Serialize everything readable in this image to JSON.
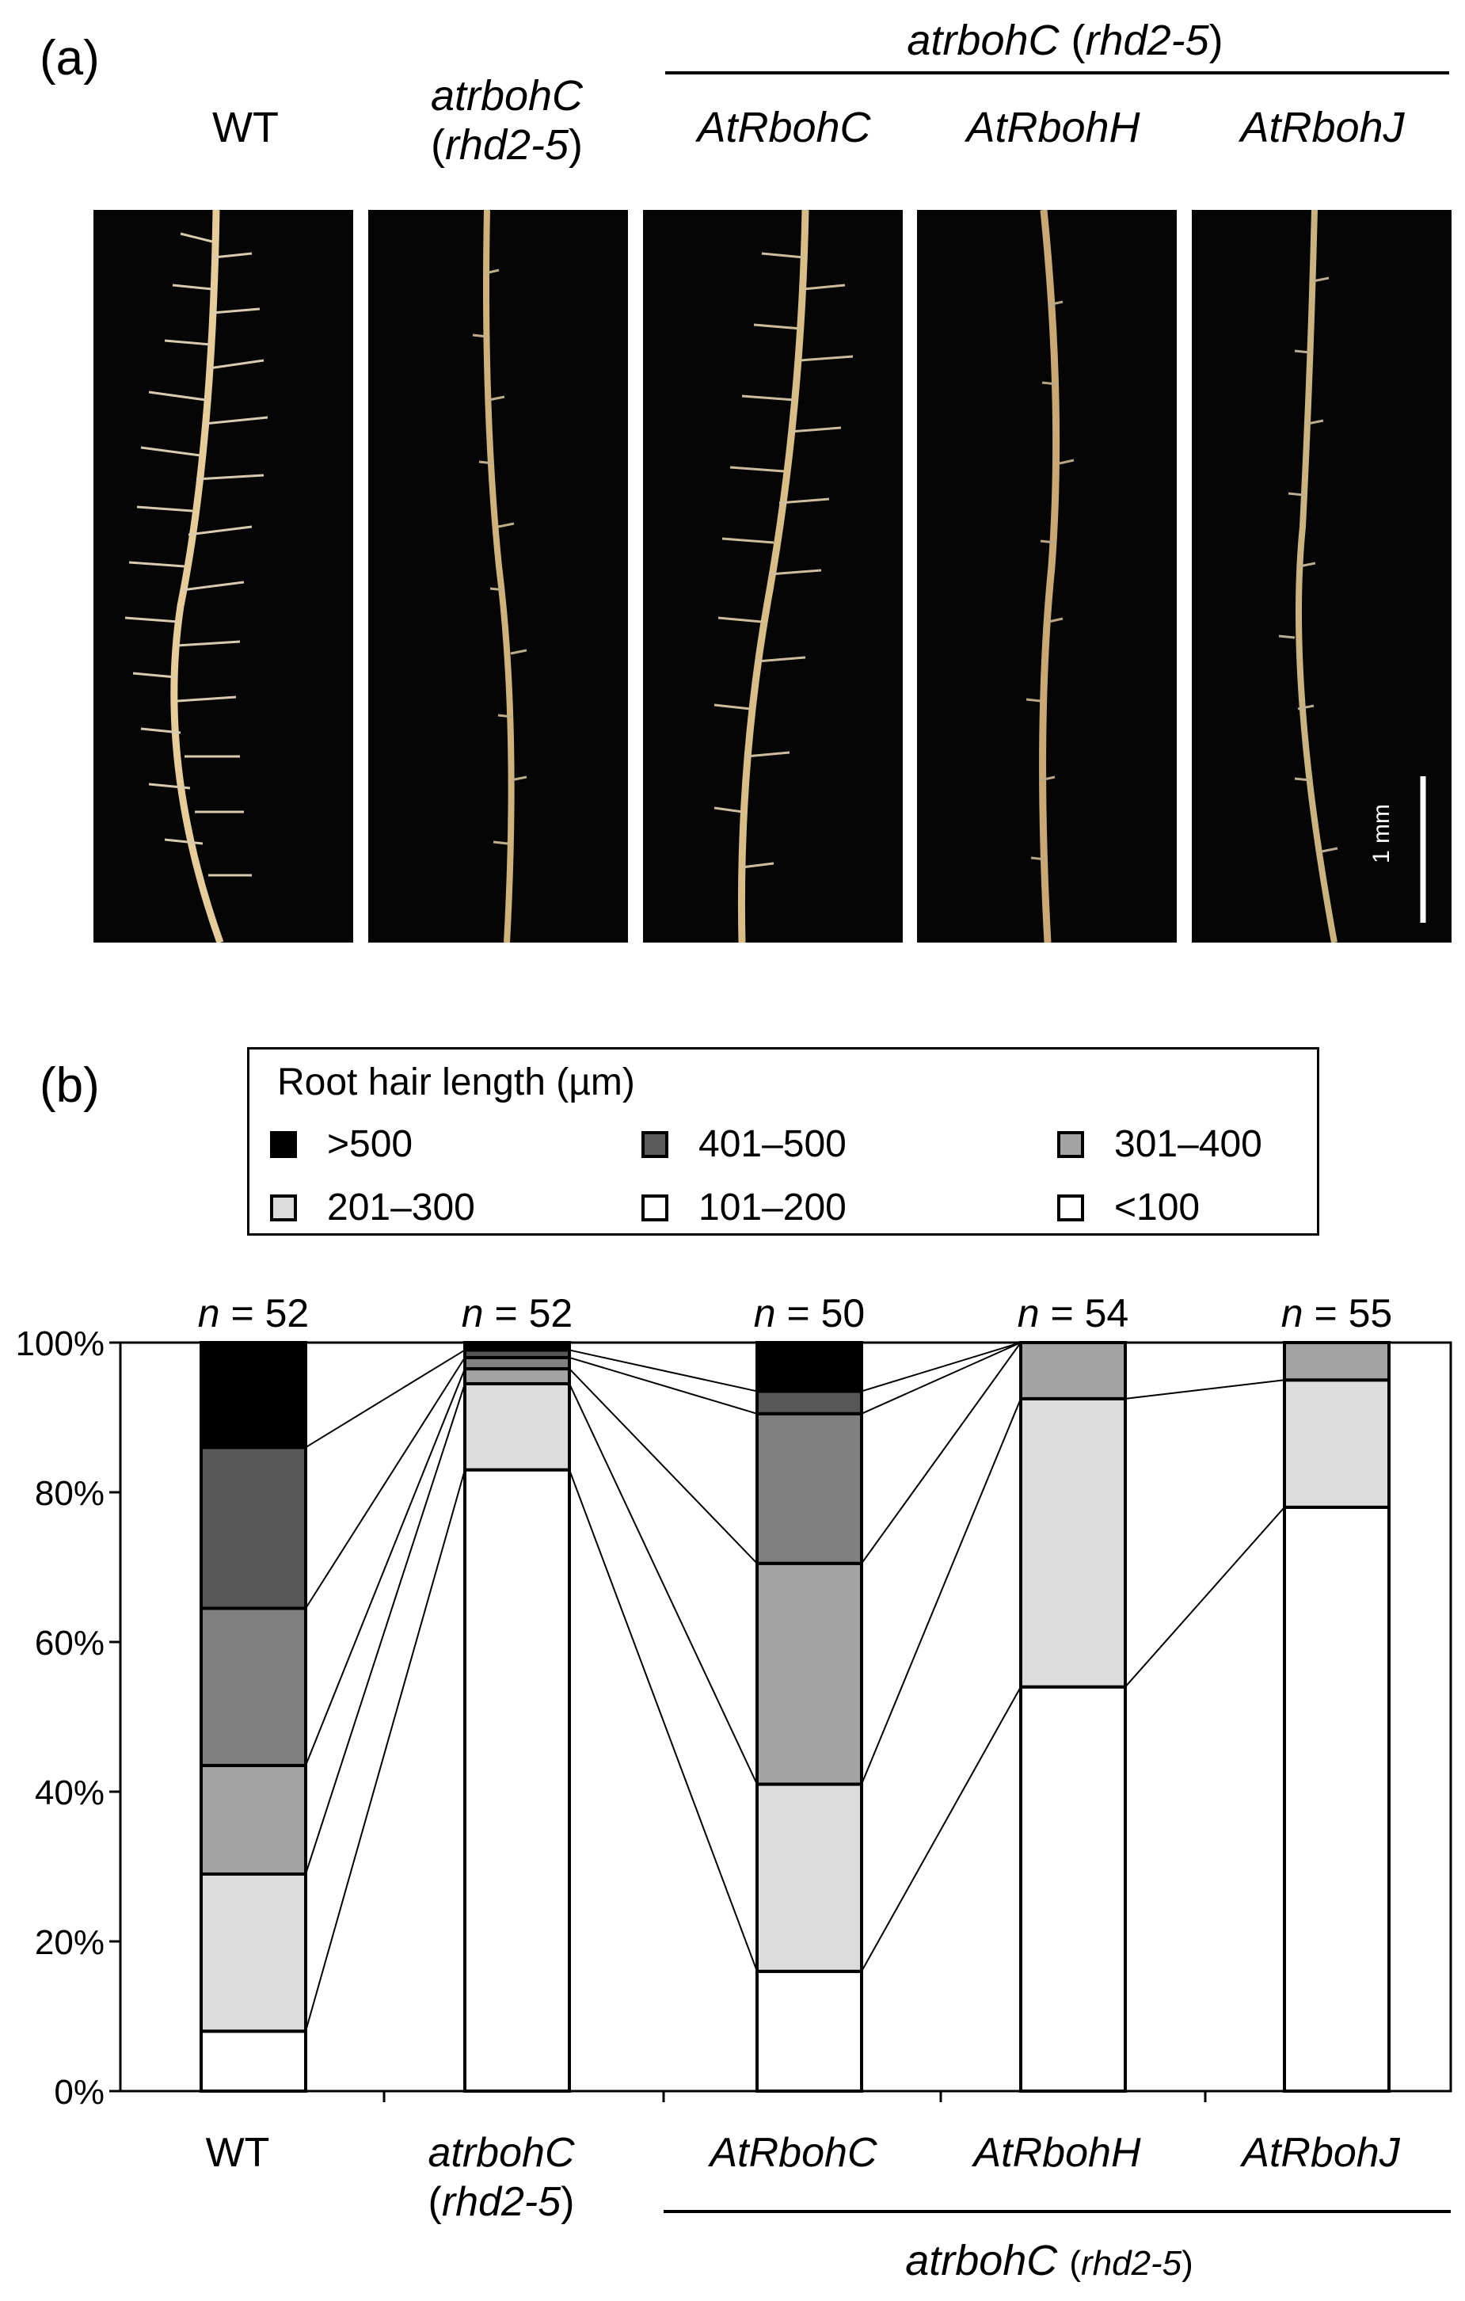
{
  "panel_a": {
    "label": "(a)",
    "top_group_label": {
      "gene": "atrbohC",
      "allele": "rhd2-5"
    },
    "columns": [
      {
        "line1": "WT",
        "line2": ""
      },
      {
        "line1": "atrbohC",
        "line2": "rhd2-5"
      },
      {
        "line1": "AtRbohC",
        "line2": ""
      },
      {
        "line1": "AtRbohH",
        "line2": ""
      },
      {
        "line1": "AtRbohJ",
        "line2": ""
      }
    ],
    "scale_bar": "1 mm"
  },
  "panel_b": {
    "label": "(b)",
    "legend": {
      "title": "Root hair length (µm)",
      "items": [
        {
          "label": ">500",
          "color": "#000000"
        },
        {
          "label": "401–500",
          "color": "#5a5a5a"
        },
        {
          "label": "301–400",
          "color": "#a3a3a3"
        },
        {
          "label": "201–300",
          "color": "#dcdcdc"
        },
        {
          "label": "101–200",
          "color": "#ffffff"
        },
        {
          "label": "<100",
          "color": "#ffffff"
        }
      ]
    },
    "bottom_group_label": {
      "gene": "atrbohC",
      "allele": "rhd2-5"
    }
  },
  "chart_data": {
    "type": "bar",
    "stacked": true,
    "categories": [
      "WT",
      "atrbohC (rhd2-5)",
      "AtRbohC",
      "AtRbohH",
      "AtRbohJ"
    ],
    "n_labels": [
      "n = 52",
      "n = 52",
      "n = 50",
      "n = 54",
      "n = 55"
    ],
    "ylim": [
      0,
      100
    ],
    "yticks": [
      "0%",
      "20%",
      "40%",
      "60%",
      "80%",
      "100%"
    ],
    "series": [
      {
        "name": "<100",
        "values": [
          8,
          83,
          16,
          54,
          78
        ]
      },
      {
        "name": "101–200",
        "values": [
          21,
          11.5,
          25,
          38.5,
          17
        ]
      },
      {
        "name": "201–300",
        "values": [
          14.5,
          2,
          29.5,
          7.5,
          5
        ]
      },
      {
        "name": "301–400",
        "values": [
          21,
          1.5,
          20,
          0,
          0
        ]
      },
      {
        "name": "401–500",
        "values": [
          21.5,
          1,
          3,
          0,
          0
        ]
      },
      {
        "name": ">500",
        "values": [
          14,
          1,
          6.5,
          0,
          0
        ]
      }
    ],
    "fills": [
      "#ffffff",
      "#dcdcdc",
      "#a3a3a3",
      "#808080",
      "#575757",
      "#000000"
    ]
  }
}
